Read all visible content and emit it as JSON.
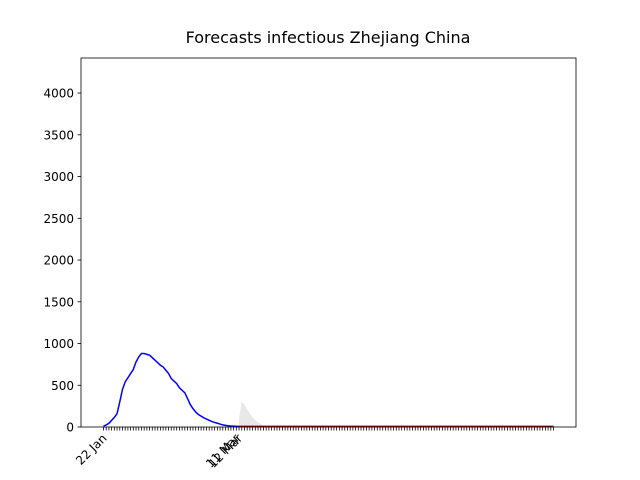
{
  "chart_data": {
    "type": "line",
    "title": "Forecasts infectious Zhejiang China",
    "categories": [
      "22 Jan",
      null,
      null,
      null,
      null,
      null,
      null,
      null,
      null,
      null,
      null,
      null,
      null,
      null,
      null,
      null,
      null,
      null,
      null,
      null,
      null,
      null,
      null,
      null,
      null,
      null,
      null,
      null,
      null,
      null,
      null,
      null,
      null,
      null,
      null,
      null,
      null,
      null,
      null,
      null,
      null,
      null,
      null,
      null,
      null,
      null,
      null,
      null,
      null,
      "11 Mar",
      "12 Mar",
      null,
      null,
      null,
      null,
      null,
      null,
      null,
      null,
      null,
      null,
      null,
      null,
      null,
      null,
      null,
      null,
      null,
      null,
      null,
      null,
      null,
      null,
      null,
      null,
      null,
      null,
      null,
      null,
      null,
      null,
      null,
      null,
      null,
      null,
      null,
      null,
      null,
      null,
      null,
      null,
      null,
      null,
      null,
      null,
      null,
      null,
      null,
      null,
      null,
      null,
      null,
      null,
      null,
      null,
      null,
      null,
      null,
      null,
      null,
      null,
      null,
      null,
      null,
      null,
      null,
      null,
      null,
      null,
      null,
      null,
      null,
      null,
      null,
      null,
      null,
      null,
      null,
      null,
      null,
      null,
      null,
      null,
      null,
      null,
      null,
      null,
      null,
      null,
      null,
      null,
      null,
      null,
      null,
      null,
      null,
      null,
      null,
      null,
      null,
      null,
      null,
      null,
      null,
      null,
      null,
      null,
      null,
      null,
      null,
      null,
      null,
      null,
      null,
      null,
      null,
      null
    ],
    "series": [
      {
        "color": "#0000ff",
        "values": [
          10,
          25,
          45,
          80,
          115,
          160,
          300,
          450,
          540,
          590,
          640,
          690,
          780,
          840,
          880,
          880,
          870,
          860,
          830,
          800,
          770,
          740,
          720,
          680,
          640,
          580,
          550,
          520,
          470,
          440,
          410,
          340,
          270,
          220,
          180,
          150,
          130,
          110,
          95,
          80,
          65,
          55,
          45,
          35,
          25,
          20,
          15,
          12,
          10,
          8,
          7,
          null,
          null,
          null,
          null,
          null,
          null,
          null,
          null,
          null,
          null,
          null,
          null,
          null,
          null,
          null,
          null,
          null,
          null,
          null,
          null,
          null,
          null,
          null,
          null,
          null,
          null,
          null,
          null,
          null,
          null,
          null,
          null,
          null,
          null,
          null,
          null,
          null,
          null,
          null,
          null,
          null,
          null,
          null,
          null,
          null,
          null,
          null,
          null,
          null,
          null,
          null,
          null,
          null,
          null,
          null,
          null,
          null,
          null,
          null,
          null,
          null,
          null,
          null,
          null,
          null,
          null,
          null,
          null,
          null,
          null,
          null,
          null,
          null,
          null,
          null,
          null,
          null,
          null,
          null,
          null,
          null,
          null,
          null,
          null,
          null,
          null,
          null,
          null,
          null,
          null,
          null,
          null,
          null,
          null,
          null,
          null,
          null,
          null,
          null,
          null,
          null,
          null,
          null,
          null,
          null,
          null,
          null,
          null,
          null,
          null,
          null,
          null,
          null,
          null,
          null,
          null
        ]
      },
      {
        "color": "#8b0000",
        "values": [
          null,
          null,
          null,
          null,
          null,
          null,
          null,
          null,
          null,
          null,
          null,
          null,
          null,
          null,
          null,
          null,
          null,
          null,
          null,
          null,
          null,
          null,
          null,
          null,
          null,
          null,
          null,
          null,
          null,
          null,
          null,
          null,
          null,
          null,
          null,
          null,
          null,
          null,
          null,
          null,
          null,
          null,
          null,
          null,
          null,
          null,
          null,
          null,
          null,
          null,
          8,
          8,
          8,
          8,
          8,
          8,
          8,
          8,
          8,
          8,
          8,
          8,
          8,
          8,
          8,
          8,
          8,
          8,
          8,
          8,
          8,
          8,
          8,
          8,
          8,
          8,
          8,
          8,
          8,
          8,
          8,
          8,
          8,
          8,
          8,
          8,
          8,
          8,
          8,
          8,
          8,
          8,
          8,
          8,
          8,
          8,
          8,
          8,
          8,
          8,
          8,
          8,
          8,
          8,
          8,
          8,
          8,
          8,
          8,
          8,
          8,
          8,
          8,
          8,
          8,
          8,
          8,
          8,
          8,
          8,
          8,
          8,
          8,
          8,
          8,
          8,
          8,
          8,
          8,
          8,
          8,
          8,
          8,
          8,
          8,
          8,
          8,
          8,
          8,
          8,
          8,
          8,
          8,
          8,
          8,
          8,
          8,
          8,
          8,
          8,
          8,
          8,
          8,
          8,
          8,
          8,
          8,
          8,
          8,
          8,
          8,
          8,
          8,
          8,
          8,
          8,
          8
        ]
      }
    ],
    "band": {
      "color": "#e8e8e8",
      "upper": [
        null,
        null,
        null,
        null,
        null,
        null,
        null,
        null,
        null,
        null,
        null,
        null,
        null,
        null,
        null,
        null,
        null,
        null,
        null,
        null,
        null,
        null,
        null,
        null,
        null,
        null,
        null,
        null,
        null,
        null,
        null,
        null,
        null,
        null,
        null,
        null,
        null,
        null,
        null,
        null,
        null,
        null,
        null,
        null,
        null,
        null,
        null,
        null,
        null,
        null,
        100,
        300,
        270,
        210,
        160,
        115,
        80,
        55,
        35,
        20,
        10,
        5,
        null,
        null,
        null,
        null,
        null,
        null,
        null,
        null,
        null,
        null,
        null,
        null,
        null,
        null,
        null,
        null,
        null,
        null,
        null,
        null,
        null,
        null,
        null,
        null,
        null,
        null,
        null,
        null,
        null,
        null,
        null,
        null,
        null,
        null,
        null,
        null,
        null,
        null,
        null,
        null,
        null,
        null,
        null,
        null,
        null,
        null,
        null,
        null,
        null,
        null,
        null,
        null,
        null,
        null,
        null,
        null,
        null,
        null,
        null,
        null,
        null,
        null,
        null,
        null,
        null,
        null,
        null,
        null,
        null,
        null,
        null,
        null,
        null,
        null,
        null,
        null,
        null,
        null,
        null,
        null,
        null,
        null,
        null,
        null,
        null,
        null,
        null,
        null,
        null,
        null,
        null,
        null,
        null,
        null,
        null,
        null,
        null,
        null,
        null,
        null,
        null,
        null,
        null,
        null,
        null
      ]
    },
    "ylim": [
      0,
      4420
    ],
    "yticks": [
      0,
      500,
      1000,
      1500,
      2000,
      2500,
      3000,
      3500,
      4000
    ]
  }
}
